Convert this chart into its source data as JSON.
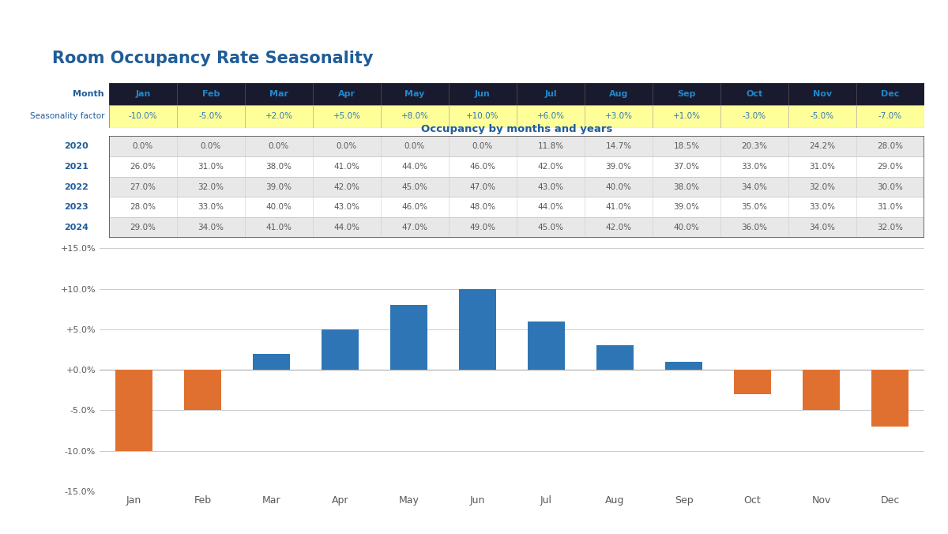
{
  "title": "Room Occupancy Rate Seasonality",
  "months": [
    "Jan",
    "Feb",
    "Mar",
    "Apr",
    "May",
    "Jun",
    "Jul",
    "Aug",
    "Sep",
    "Oct",
    "Nov",
    "Dec"
  ],
  "seasonality_factors": [
    -10.0,
    -5.0,
    2.0,
    5.0,
    8.0,
    10.0,
    6.0,
    3.0,
    1.0,
    -3.0,
    -5.0,
    -7.0
  ],
  "seasonality_labels": [
    "-10.0%",
    "-5.0%",
    "+2.0%",
    "+5.0%",
    "+8.0%",
    "+10.0%",
    "+6.0%",
    "+3.0%",
    "+1.0%",
    "-3.0%",
    "-5.0%",
    "-7.0%"
  ],
  "occupancy_title": "Occupancy by months and years",
  "occupancy_years": [
    "2020",
    "2021",
    "2022",
    "2023",
    "2024"
  ],
  "occupancy_data": {
    "2020": [
      0.0,
      0.0,
      0.0,
      0.0,
      0.0,
      0.0,
      11.8,
      14.7,
      18.5,
      20.3,
      24.2,
      28.0
    ],
    "2021": [
      26.0,
      31.0,
      38.0,
      41.0,
      44.0,
      46.0,
      42.0,
      39.0,
      37.0,
      33.0,
      31.0,
      29.0
    ],
    "2022": [
      27.0,
      32.0,
      39.0,
      42.0,
      45.0,
      47.0,
      43.0,
      40.0,
      38.0,
      34.0,
      32.0,
      30.0
    ],
    "2023": [
      28.0,
      33.0,
      40.0,
      43.0,
      46.0,
      48.0,
      44.0,
      41.0,
      39.0,
      35.0,
      33.0,
      31.0
    ],
    "2024": [
      29.0,
      34.0,
      41.0,
      44.0,
      47.0,
      49.0,
      45.0,
      42.0,
      40.0,
      36.0,
      34.0,
      32.0
    ]
  },
  "bar_color_positive": "#2E75B6",
  "bar_color_negative": "#E07030",
  "title_color": "#1F5C99",
  "month_header_bg": "#1F3864",
  "month_header_text": "#1F5C99",
  "seasonality_bg_color": "#FFFF99",
  "seasonality_text_color": "#2E75B6",
  "year_text_color": "#1F5C99",
  "cell_text_color": "#595959",
  "occ_title_color": "#1F5C99",
  "grid_color": "#CCCCCC",
  "background_color": "#FFFFFF",
  "y_ticks": [
    -15.0,
    -10.0,
    -5.0,
    0.0,
    5.0,
    10.0,
    15.0
  ],
  "y_tick_labels": [
    "-15.0%",
    "-10.0%",
    "-5.0%",
    "+0.0%",
    "+5.0%",
    "+10.0%",
    "+15.0%"
  ]
}
